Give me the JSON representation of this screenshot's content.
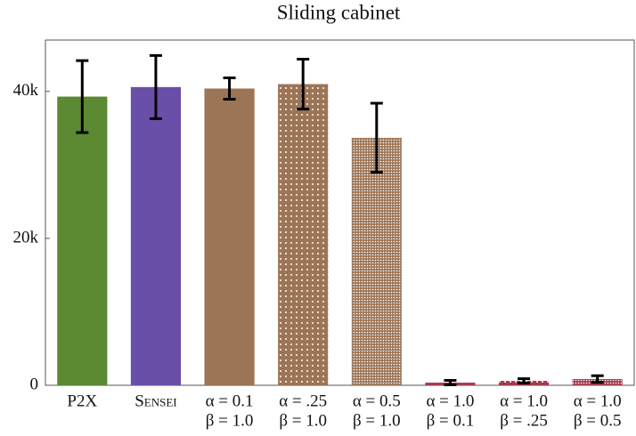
{
  "chart_data": {
    "type": "bar",
    "title": "Sliding cabinet",
    "categories": [
      [
        "P2X"
      ],
      [
        "Sensei"
      ],
      [
        "α = 0.1",
        "β = 1.0"
      ],
      [
        "α = .25",
        "β = 1.0"
      ],
      [
        "α = 0.5",
        "β = 1.0"
      ],
      [
        "α = 1.0",
        "β = 0.1"
      ],
      [
        "α = 1.0",
        "β = .25"
      ],
      [
        "α = 1.0",
        "β = 0.5"
      ]
    ],
    "values": [
      39300,
      40600,
      40400,
      41000,
      33700,
      360,
      600,
      850
    ],
    "errors": [
      4900,
      4300,
      1450,
      3400,
      4700,
      300,
      300,
      450
    ],
    "colors": [
      "#5b8a32",
      "#6a4fa8",
      "#9c7556",
      "#9c7556",
      "#9c7556",
      "#a53a4c",
      "#a53a4c",
      "#a53a4c"
    ],
    "patterns": [
      "solid",
      "solid",
      "solid",
      "dots",
      "dense",
      "solid",
      "dots",
      "dense"
    ],
    "ylim": [
      0,
      47000
    ],
    "yticks": [
      0,
      {
        "value": 20000,
        "label": "20k"
      },
      {
        "value": 40000,
        "label": "40k"
      }
    ]
  }
}
